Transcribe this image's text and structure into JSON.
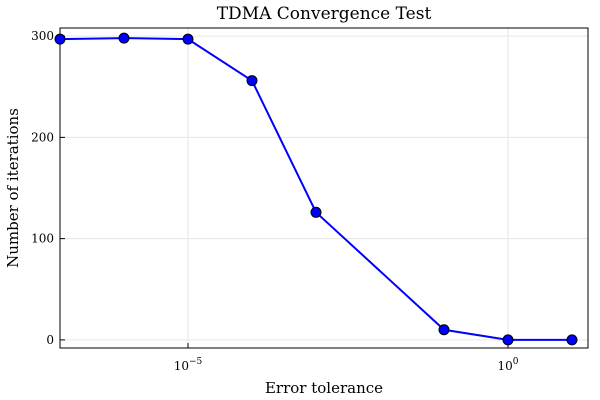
{
  "chart_data": {
    "type": "line",
    "title": "TDMA Convergence Test",
    "xlabel": "Error tolerance",
    "ylabel": "Number of iterations",
    "x_scale": "log",
    "x_log_range": [
      -7,
      1.25
    ],
    "ylim": [
      -8,
      308
    ],
    "grid": true,
    "color": "#0000ff",
    "x_ticks": [
      {
        "value": 1e-05,
        "base": "10",
        "exp": "−5"
      },
      {
        "value": 1,
        "base": "10",
        "exp": "0"
      }
    ],
    "y_ticks": [
      0,
      100,
      200,
      300
    ],
    "series": [
      {
        "x": [
          1e-07,
          1e-06,
          1e-05,
          0.0001,
          0.001,
          0.1,
          1,
          10
        ],
        "y": [
          297,
          298,
          297,
          256,
          126,
          10,
          0,
          0
        ]
      }
    ]
  }
}
